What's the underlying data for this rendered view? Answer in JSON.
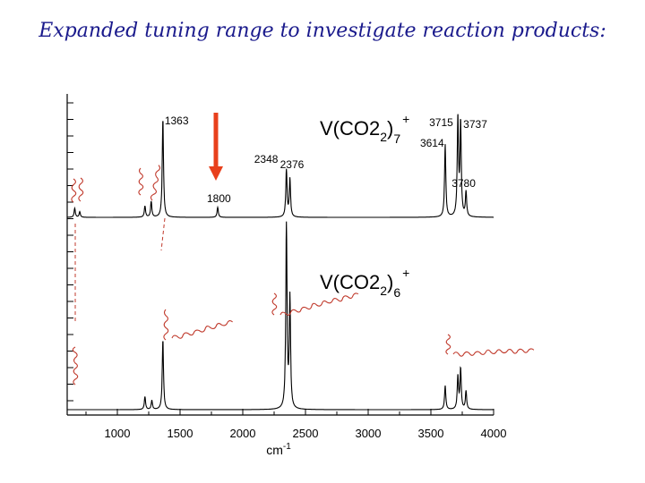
{
  "slide": {
    "title": "Expanded tuning range to investigate reaction products:"
  },
  "chart_data": {
    "type": "line",
    "xlabel": "cm-1",
    "xlim": [
      600,
      4000
    ],
    "x_ticks": [
      1000,
      1500,
      2000,
      2500,
      3000,
      3500,
      4000
    ],
    "grid": false,
    "arrow_at_x": 1800,
    "series": [
      {
        "name": "V(CO2)7+",
        "species_label": "V(CO2)",
        "species_sub": "7",
        "species_sup": "+",
        "peaks": [
          {
            "x": 660,
            "h": 0.08,
            "label": ""
          },
          {
            "x": 700,
            "h": 0.05,
            "label": ""
          },
          {
            "x": 1220,
            "h": 0.1,
            "label": ""
          },
          {
            "x": 1270,
            "h": 0.14,
            "label": ""
          },
          {
            "x": 1363,
            "h": 0.88,
            "label": "1363"
          },
          {
            "x": 1800,
            "h": 0.09,
            "label": "1800"
          },
          {
            "x": 2348,
            "h": 0.42,
            "label": "2348"
          },
          {
            "x": 2376,
            "h": 0.34,
            "label": "2376"
          },
          {
            "x": 3614,
            "h": 0.65,
            "label": "3614"
          },
          {
            "x": 3715,
            "h": 0.88,
            "label": "3715"
          },
          {
            "x": 3737,
            "h": 0.83,
            "label": "3737"
          },
          {
            "x": 3780,
            "h": 0.22,
            "label": "3780"
          }
        ]
      },
      {
        "name": "V(CO2)6+",
        "species_label": "V(CO2)",
        "species_sub": "6",
        "species_sup": "+",
        "peaks": [
          {
            "x": 1220,
            "h": 0.07,
            "label": ""
          },
          {
            "x": 1275,
            "h": 0.05,
            "label": ""
          },
          {
            "x": 1363,
            "h": 0.38,
            "label": ""
          },
          {
            "x": 2348,
            "h": 1.0,
            "label": ""
          },
          {
            "x": 2376,
            "h": 0.6,
            "label": ""
          },
          {
            "x": 3614,
            "h": 0.13,
            "label": ""
          },
          {
            "x": 3715,
            "h": 0.18,
            "label": ""
          },
          {
            "x": 3737,
            "h": 0.22,
            "label": ""
          },
          {
            "x": 3780,
            "h": 0.1,
            "label": ""
          }
        ]
      }
    ]
  }
}
